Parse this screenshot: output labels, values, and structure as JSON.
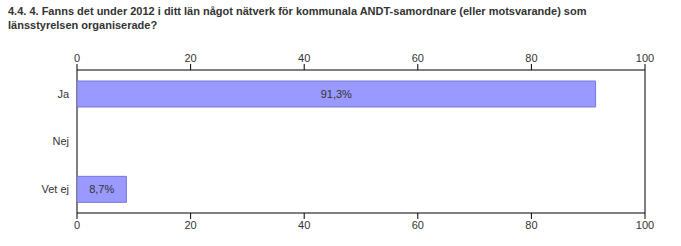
{
  "chart_data": {
    "type": "bar",
    "title": "4.4. 4. Fanns det under 2012 i ditt län något nätverk för kommunala ANDT-samordnare (eller motsvarande) som länsstyrelsen organiserade?",
    "orientation": "horizontal",
    "categories": [
      "Ja",
      "Nej",
      "Vet ej"
    ],
    "values": [
      91.3,
      0,
      8.7
    ],
    "value_labels": [
      "91,3%",
      null,
      "8,7%"
    ],
    "data_labels": true,
    "color": "#9999ff",
    "xlim": [
      0,
      100
    ],
    "xticks": [
      0,
      20,
      40,
      60,
      80,
      100
    ],
    "grid": true
  }
}
